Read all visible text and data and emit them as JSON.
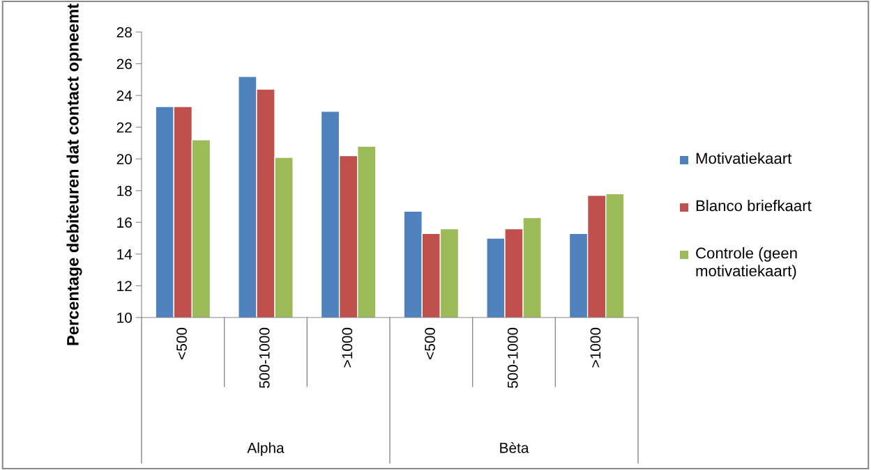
{
  "chart_data": {
    "type": "bar",
    "ylabel": "Percentage debiteuren dat contact opneemt",
    "categories": [
      "<500",
      "500-1000",
      ">1000",
      "<500",
      "500-1000",
      ">1000"
    ],
    "series": [
      {
        "name": "Motivatiekaart",
        "color": "#4f81bd",
        "values": [
          23.3,
          25.2,
          23.0,
          16.7,
          15.0,
          15.3
        ]
      },
      {
        "name": "Blanco briefkaart",
        "color": "#c0504d",
        "values": [
          23.3,
          24.4,
          20.2,
          15.3,
          15.6,
          17.7
        ]
      },
      {
        "name": "Controle (geen motivatiekaart)",
        "color": "#9bbb59",
        "values": [
          21.2,
          20.1,
          20.8,
          15.6,
          16.3,
          17.8
        ]
      }
    ],
    "annotations": [
      "Alpha",
      "Bèta"
    ],
    "ylim": [
      10,
      28
    ],
    "yticks": [
      10,
      12,
      14,
      16,
      18,
      20,
      22,
      24,
      26,
      28
    ],
    "grid": false,
    "legend": "right"
  }
}
